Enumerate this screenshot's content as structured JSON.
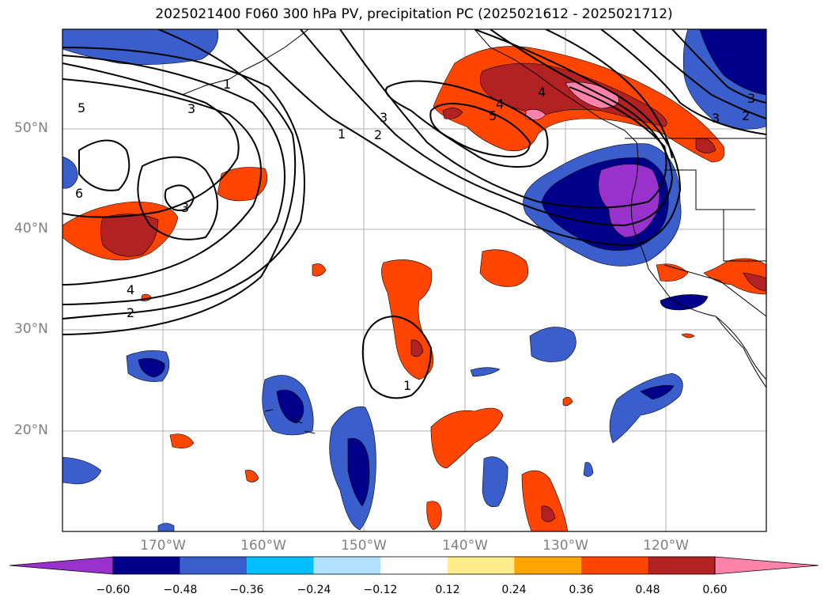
{
  "title": "2025021400 F060 300 hPa PV, precipitation PC (2025021612 - 2025021712)",
  "map": {
    "lat_labels": [
      "50°N",
      "40°N",
      "30°N",
      "20°N"
    ],
    "lon_labels": [
      "170°W",
      "160°W",
      "150°W",
      "140°W",
      "130°W",
      "120°W"
    ],
    "contour_labels": [
      "5",
      "3",
      "1",
      "2",
      "3",
      "5",
      "4",
      "4",
      "1",
      "2",
      "3",
      "6",
      "3",
      "4",
      "2",
      "1",
      "2",
      "3"
    ]
  },
  "colorbar": {
    "ticks": [
      "−0.60",
      "−0.48",
      "−0.36",
      "−0.24",
      "−0.12",
      "0.12",
      "0.24",
      "0.36",
      "0.48",
      "0.60"
    ],
    "colors": [
      "#9932cc",
      "#00008b",
      "#3a5fcd",
      "#00bfff",
      "#b0e2ff",
      "#ffffff",
      "#ffec8b",
      "#ffa500",
      "#ff4500",
      "#b22222",
      "#ff82ab"
    ]
  }
}
